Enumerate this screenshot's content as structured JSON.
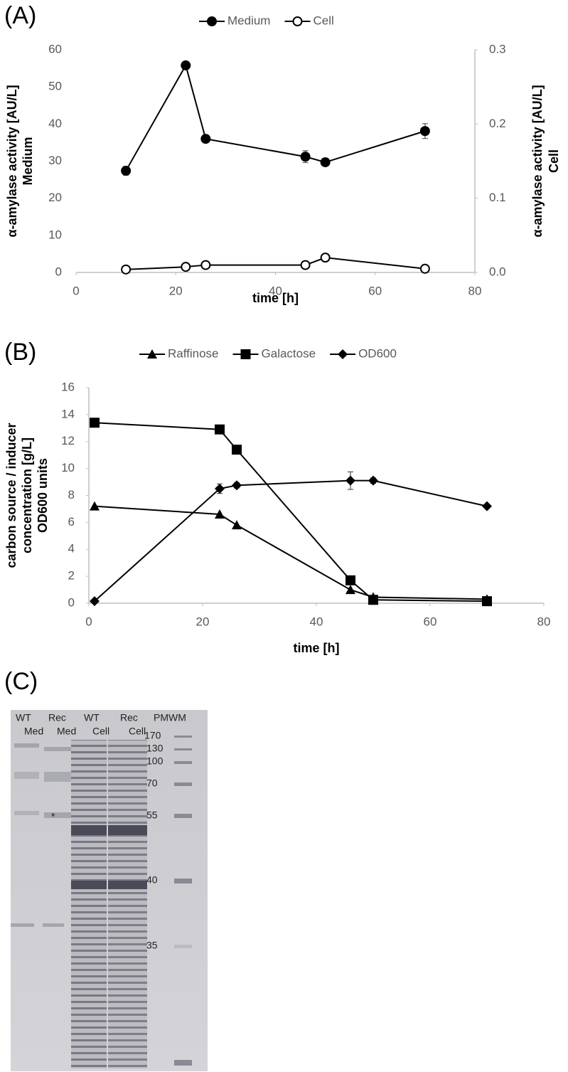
{
  "panel_labels": [
    "(A)",
    "(B)",
    "(C)"
  ],
  "chart_data": [
    {
      "type": "line",
      "xlabel": "time [h]",
      "ylabel": [
        "α-amylase activity [AU/L]",
        "Medium"
      ],
      "y2label": [
        "α-amylase activity [AU/L]",
        "Cell"
      ],
      "xlim": [
        0,
        80
      ],
      "xticks": [
        0,
        20,
        40,
        60,
        80
      ],
      "ylim": [
        0,
        60
      ],
      "yticks": [
        0,
        10,
        20,
        30,
        40,
        50,
        60
      ],
      "y2lim": [
        0,
        0.3
      ],
      "y2ticks": [
        {
          "value": 0,
          "label": "0.0"
        },
        0.1,
        0.2,
        0.3
      ],
      "legend": "top",
      "series": [
        {
          "name": "Medium",
          "color": "#000000",
          "marker": "circle-filled",
          "x": [
            10,
            22,
            26,
            46,
            50,
            70
          ],
          "values": [
            27.4,
            55.8,
            36,
            31.2,
            29.7,
            38.1
          ],
          "error": [
            1.2,
            null,
            null,
            1.6,
            null,
            2.0
          ]
        },
        {
          "name": "Cell",
          "color": "#000000",
          "marker": "circle-open",
          "axis": "y2",
          "x": [
            10,
            22,
            26,
            46,
            50,
            70
          ],
          "values": [
            0.004,
            0.0075,
            0.01,
            0.01,
            0.02,
            0.005
          ]
        }
      ]
    },
    {
      "type": "line",
      "xlabel": "time [h]",
      "ylabel": [
        "carbon source / inducer",
        "concentration [g/L]",
        "OD600 units"
      ],
      "xlim": [
        0,
        80
      ],
      "xticks": [
        0,
        20,
        40,
        60,
        80
      ],
      "ylim": [
        0,
        16
      ],
      "yticks": [
        0,
        2,
        4,
        6,
        8,
        10,
        12,
        14,
        16
      ],
      "legend": "top",
      "series": [
        {
          "name": "Raffinose",
          "color": "#000000",
          "marker": "triangle",
          "x": [
            1,
            23,
            26,
            46,
            50,
            70
          ],
          "values": [
            7.2,
            6.6,
            5.8,
            1.0,
            0.45,
            0.3
          ]
        },
        {
          "name": "Galactose",
          "color": "#000000",
          "marker": "square",
          "x": [
            1,
            23,
            26,
            46,
            50,
            70
          ],
          "values": [
            13.4,
            12.9,
            11.4,
            1.7,
            0.25,
            0.15
          ]
        },
        {
          "name": "OD600",
          "color": "#000000",
          "marker": "diamond",
          "x": [
            1,
            23,
            26,
            46,
            50,
            70
          ],
          "values": [
            0.15,
            8.5,
            8.75,
            9.1,
            9.1,
            7.2
          ],
          "error": [
            null,
            0.35,
            0.2,
            0.65,
            0.2,
            null
          ]
        }
      ]
    }
  ],
  "gel": {
    "lanes": [
      [
        "WT",
        "Med"
      ],
      [
        "Rec",
        "Med"
      ],
      [
        "WT",
        "Cell"
      ],
      [
        "Rec",
        "Cell"
      ],
      [
        "PMWM"
      ]
    ],
    "markers": [
      "170",
      "130",
      "100",
      "70",
      "55",
      "40",
      "35"
    ],
    "asterisk": "*"
  }
}
